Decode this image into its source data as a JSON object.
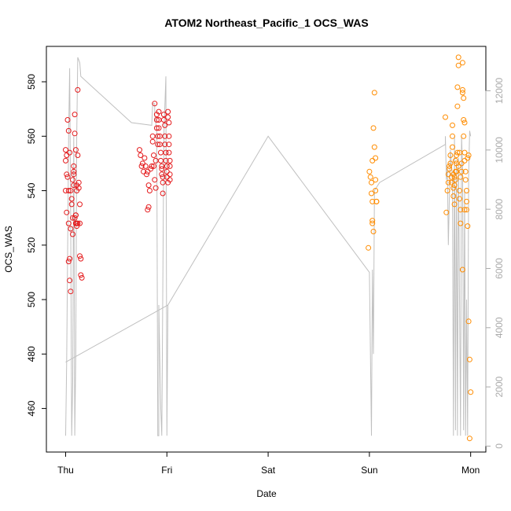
{
  "chart_data": {
    "type": "scatter",
    "title": "ATOM2 Northeast_Pacific_1 OCS_WAS",
    "xlabel": "Date",
    "ylabel": "OCS_WAS",
    "x_ticks": [
      {
        "label": "Thu",
        "value": 0
      },
      {
        "label": "Fri",
        "value": 1
      },
      {
        "label": "Sat",
        "value": 2
      },
      {
        "label": "Sun",
        "value": 3
      },
      {
        "label": "Mon",
        "value": 4
      }
    ],
    "xlim": [
      -0.19,
      4.15
    ],
    "ylim": [
      444,
      593
    ],
    "y_ticks": [
      460,
      480,
      500,
      520,
      540,
      560,
      580
    ],
    "y2lim": [
      -200,
      13500
    ],
    "y2_ticks": [
      0,
      2000,
      4000,
      6000,
      8000,
      10000,
      12000
    ],
    "colors": {
      "series_red": "#e41a1c",
      "series_orange": "#ff8c00",
      "altitude_line": "#c0c0c0"
    },
    "series": [
      {
        "color": "#e41a1c",
        "points": [
          [
            0.0,
            555
          ],
          [
            0.01,
            553
          ],
          [
            0.0,
            551
          ],
          [
            0.01,
            546
          ],
          [
            0.02,
            545
          ],
          [
            0.0,
            540
          ],
          [
            0.01,
            532
          ],
          [
            0.03,
            540
          ],
          [
            0.02,
            566
          ],
          [
            0.03,
            562
          ],
          [
            0.04,
            554
          ],
          [
            0.03,
            528
          ],
          [
            0.05,
            526
          ],
          [
            0.04,
            515
          ],
          [
            0.03,
            514
          ],
          [
            0.04,
            507
          ],
          [
            0.05,
            503
          ],
          [
            0.05,
            540
          ],
          [
            0.06,
            537
          ],
          [
            0.06,
            535
          ],
          [
            0.07,
            530
          ],
          [
            0.07,
            524
          ],
          [
            0.07,
            544
          ],
          [
            0.08,
            542
          ],
          [
            0.08,
            546
          ],
          [
            0.08,
            549
          ],
          [
            0.08,
            547
          ],
          [
            0.09,
            561
          ],
          [
            0.09,
            568
          ],
          [
            0.1,
            555
          ],
          [
            0.09,
            530
          ],
          [
            0.1,
            531
          ],
          [
            0.1,
            531
          ],
          [
            0.1,
            528
          ],
          [
            0.11,
            528
          ],
          [
            0.11,
            527
          ],
          [
            0.11,
            540
          ],
          [
            0.11,
            542
          ],
          [
            0.12,
            553
          ],
          [
            0.12,
            577
          ],
          [
            0.13,
            543
          ],
          [
            0.13,
            541
          ],
          [
            0.12,
            528
          ],
          [
            0.14,
            528
          ],
          [
            0.14,
            516
          ],
          [
            0.15,
            515
          ],
          [
            0.15,
            509
          ],
          [
            0.16,
            508
          ],
          [
            0.14,
            535
          ]
        ]
      },
      {
        "color": "#e41a1c",
        "points": [
          [
            0.73,
            555
          ],
          [
            0.74,
            553
          ],
          [
            0.75,
            549
          ],
          [
            0.76,
            550
          ],
          [
            0.77,
            547
          ],
          [
            0.78,
            552
          ],
          [
            0.79,
            549
          ],
          [
            0.8,
            546
          ],
          [
            0.81,
            547
          ],
          [
            0.82,
            542
          ],
          [
            0.83,
            540
          ],
          [
            0.81,
            533
          ],
          [
            0.82,
            534
          ],
          [
            0.84,
            548
          ],
          [
            0.85,
            549
          ],
          [
            0.86,
            560
          ],
          [
            0.86,
            558
          ],
          [
            0.87,
            553
          ],
          [
            0.87,
            549
          ],
          [
            0.88,
            572
          ],
          [
            0.88,
            544
          ],
          [
            0.89,
            541
          ],
          [
            0.89,
            551
          ],
          [
            0.9,
            568
          ],
          [
            0.9,
            566
          ],
          [
            0.9,
            563
          ],
          [
            0.91,
            560
          ],
          [
            0.91,
            557
          ],
          [
            0.92,
            569
          ],
          [
            0.92,
            566
          ],
          [
            0.92,
            563
          ],
          [
            0.93,
            560
          ],
          [
            0.93,
            557
          ],
          [
            0.94,
            554
          ],
          [
            0.94,
            551
          ],
          [
            0.95,
            549
          ],
          [
            0.95,
            548
          ],
          [
            0.95,
            546
          ],
          [
            0.96,
            545
          ],
          [
            0.96,
            543
          ],
          [
            0.96,
            539
          ],
          [
            0.97,
            568
          ],
          [
            0.97,
            566
          ],
          [
            0.98,
            564
          ],
          [
            0.98,
            560
          ],
          [
            0.98,
            557
          ],
          [
            0.99,
            554
          ],
          [
            0.99,
            551
          ],
          [
            1.0,
            549
          ],
          [
            1.0,
            547
          ],
          [
            1.0,
            545
          ],
          [
            1.01,
            543
          ],
          [
            1.01,
            569
          ],
          [
            1.01,
            567
          ],
          [
            1.02,
            565
          ],
          [
            1.02,
            560
          ],
          [
            1.02,
            557
          ],
          [
            1.02,
            554
          ],
          [
            1.03,
            551
          ],
          [
            1.03,
            549
          ],
          [
            1.03,
            546
          ],
          [
            1.03,
            544
          ]
        ]
      },
      {
        "color": "#ff8c00",
        "points": [
          [
            2.99,
            519
          ],
          [
            3.0,
            547
          ],
          [
            3.01,
            545
          ],
          [
            3.02,
            543
          ],
          [
            3.02,
            539
          ],
          [
            3.03,
            536
          ],
          [
            3.03,
            529
          ],
          [
            3.03,
            528
          ],
          [
            3.04,
            525
          ],
          [
            3.03,
            551
          ],
          [
            3.04,
            563
          ],
          [
            3.05,
            576
          ],
          [
            3.05,
            556
          ],
          [
            3.06,
            552
          ],
          [
            3.06,
            544
          ],
          [
            3.06,
            540
          ],
          [
            3.07,
            536
          ],
          [
            3.07,
            536
          ]
        ]
      },
      {
        "color": "#ff8c00",
        "points": [
          [
            3.75,
            567
          ],
          [
            3.76,
            532
          ],
          [
            3.77,
            540
          ],
          [
            3.78,
            543
          ],
          [
            3.78,
            546
          ],
          [
            3.79,
            548
          ],
          [
            3.79,
            549
          ],
          [
            3.8,
            550
          ],
          [
            3.8,
            553
          ],
          [
            3.81,
            545
          ],
          [
            3.81,
            543
          ],
          [
            3.82,
            556
          ],
          [
            3.82,
            564
          ],
          [
            3.82,
            560
          ],
          [
            3.83,
            546
          ],
          [
            3.83,
            541
          ],
          [
            3.83,
            538
          ],
          [
            3.84,
            535
          ],
          [
            3.84,
            545
          ],
          [
            3.84,
            542
          ],
          [
            3.85,
            551
          ],
          [
            3.85,
            547
          ],
          [
            3.85,
            544
          ],
          [
            3.86,
            553
          ],
          [
            3.86,
            550
          ],
          [
            3.86,
            547
          ],
          [
            3.87,
            571
          ],
          [
            3.87,
            554
          ],
          [
            3.87,
            578
          ],
          [
            3.88,
            589
          ],
          [
            3.88,
            586
          ],
          [
            3.88,
            549
          ],
          [
            3.89,
            554
          ],
          [
            3.89,
            540
          ],
          [
            3.89,
            537
          ],
          [
            3.9,
            533
          ],
          [
            3.9,
            528
          ],
          [
            3.9,
            545
          ],
          [
            3.91,
            547
          ],
          [
            3.91,
            550
          ],
          [
            3.92,
            587
          ],
          [
            3.92,
            577
          ],
          [
            3.92,
            576
          ],
          [
            3.93,
            574
          ],
          [
            3.93,
            566
          ],
          [
            3.93,
            560
          ],
          [
            3.94,
            565
          ],
          [
            3.94,
            554
          ],
          [
            3.94,
            551
          ],
          [
            3.95,
            547
          ],
          [
            3.95,
            544
          ],
          [
            3.96,
            540
          ],
          [
            3.96,
            536
          ],
          [
            3.96,
            533
          ],
          [
            3.97,
            527
          ],
          [
            3.97,
            552
          ],
          [
            3.98,
            553
          ],
          [
            3.98,
            492
          ],
          [
            3.99,
            478
          ],
          [
            4.0,
            466
          ],
          [
            3.99,
            449
          ],
          [
            3.92,
            511
          ],
          [
            3.94,
            533
          ]
        ]
      }
    ],
    "altitude_line": [
      [
        0.0,
        450
      ],
      [
        0.01,
        477
      ],
      [
        0.03,
        560
      ],
      [
        0.04,
        585
      ],
      [
        0.05,
        530
      ],
      [
        0.06,
        450
      ],
      [
        0.07,
        470
      ],
      [
        0.08,
        560
      ],
      [
        0.09,
        450
      ],
      [
        0.1,
        480
      ],
      [
        0.11,
        560
      ],
      [
        0.12,
        589
      ],
      [
        0.13,
        588
      ],
      [
        0.14,
        587
      ],
      [
        0.15,
        582
      ],
      [
        0.15,
        582
      ],
      [
        0.65,
        565
      ],
      [
        0.85,
        564
      ],
      [
        0.86,
        572
      ],
      [
        0.88,
        572
      ],
      [
        0.88,
        568
      ],
      [
        0.9,
        562
      ],
      [
        0.91,
        450
      ],
      [
        0.92,
        450
      ],
      [
        0.92,
        498
      ],
      [
        0.94,
        460
      ],
      [
        0.95,
        450
      ],
      [
        0.97,
        560
      ],
      [
        0.99,
        582
      ],
      [
        1.0,
        450
      ],
      [
        1.01,
        498
      ],
      [
        1.01,
        498
      ],
      [
        0.0,
        477
      ],
      [
        1.01,
        498
      ],
      [
        2.0,
        560
      ],
      [
        2.0,
        560
      ],
      [
        3.0,
        510
      ],
      [
        3.02,
        450
      ],
      [
        3.03,
        511
      ],
      [
        3.04,
        480
      ],
      [
        3.05,
        540
      ],
      [
        3.1,
        543
      ],
      [
        3.1,
        543
      ],
      [
        3.75,
        557
      ],
      [
        3.75,
        560
      ],
      [
        3.76,
        544
      ],
      [
        3.77,
        548
      ],
      [
        3.78,
        520
      ],
      [
        3.8,
        555
      ],
      [
        3.82,
        545
      ],
      [
        3.83,
        450
      ],
      [
        3.84,
        560
      ],
      [
        3.85,
        452
      ],
      [
        3.86,
        550
      ],
      [
        3.87,
        450
      ],
      [
        3.88,
        552
      ],
      [
        3.9,
        450
      ],
      [
        3.91,
        560
      ],
      [
        3.92,
        548
      ],
      [
        3.93,
        452
      ],
      [
        3.94,
        540
      ],
      [
        3.95,
        450
      ],
      [
        3.96,
        500
      ],
      [
        3.97,
        450
      ],
      [
        3.98,
        545
      ],
      [
        3.99,
        562
      ],
      [
        4.0,
        560
      ]
    ]
  }
}
